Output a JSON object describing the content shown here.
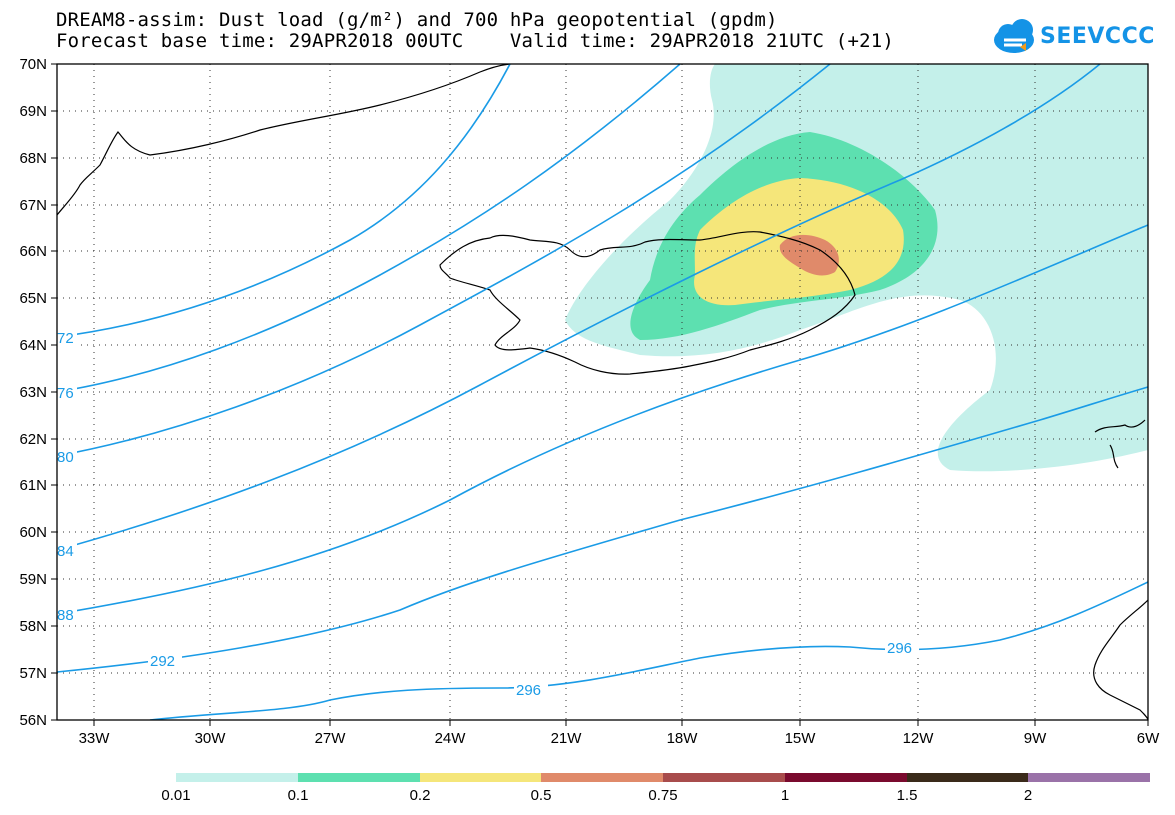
{
  "header": {
    "title_line1": "DREAM8-assim: Dust load (g/m²) and 700 hPa geopotential (gpdm)",
    "title_line2": "Forecast base time: 29APR2018 00UTC    Valid time: 29APR2018 21UTC (+21)"
  },
  "logo": {
    "text": "SEEVCCC",
    "color": "#1493e6"
  },
  "map": {
    "lat_labels": [
      "70N",
      "69N",
      "68N",
      "67N",
      "66N",
      "65N",
      "64N",
      "63N",
      "62N",
      "61N",
      "60N",
      "59N",
      "58N",
      "57N",
      "56N"
    ],
    "lon_labels": [
      "33W",
      "30W",
      "27W",
      "24W",
      "21W",
      "18W",
      "15W",
      "12W",
      "9W",
      "6W"
    ],
    "contour_labels": [
      "72",
      "76",
      "80",
      "84",
      "88",
      "292",
      "296",
      "296"
    ],
    "contour_color": "#1a9be6",
    "dust_colors": {
      "0.01": "#c4f0ea",
      "0.1": "#5de0b0",
      "0.2": "#f5e67a",
      "0.5": "#e08a6a"
    }
  },
  "legend": {
    "labels": [
      "0.01",
      "0.1",
      "0.2",
      "0.5",
      "0.75",
      "1",
      "1.5",
      "2"
    ],
    "colors": [
      "#c4f0ea",
      "#5de0b0",
      "#f5e67a",
      "#e08a6a",
      "#a84c4c",
      "#7a0a2e",
      "#3a2a1a",
      "#9a72a8"
    ]
  }
}
